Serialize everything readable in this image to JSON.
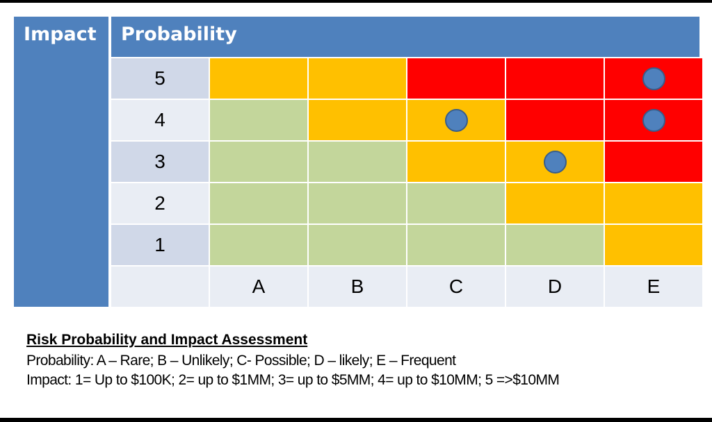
{
  "header": {
    "impact_label": "Impact",
    "probability_label": "Probability"
  },
  "colors": {
    "header_blue": "#4f81bd",
    "green": "#c3d69b",
    "amber": "#ffc000",
    "red": "#ff0000",
    "marker": "#4f81bd"
  },
  "matrix": {
    "row_labels": [
      "5",
      "4",
      "3",
      "2",
      "1"
    ],
    "column_labels": [
      "A",
      "B",
      "C",
      "D",
      "E"
    ],
    "cells": [
      [
        "amber",
        "amber",
        "red",
        "red",
        "red"
      ],
      [
        "green",
        "amber",
        "amber",
        "red",
        "red"
      ],
      [
        "green",
        "green",
        "amber",
        "amber",
        "red"
      ],
      [
        "green",
        "green",
        "green",
        "amber",
        "amber"
      ],
      [
        "green",
        "green",
        "green",
        "green",
        "amber"
      ]
    ],
    "markers": [
      {
        "impact": "5",
        "probability": "E"
      },
      {
        "impact": "4",
        "probability": "C"
      },
      {
        "impact": "4",
        "probability": "E"
      },
      {
        "impact": "3",
        "probability": "D"
      }
    ]
  },
  "legend": {
    "title": "Risk Probability and Impact Assessment",
    "probability_line": "Probability: A – Rare; B – Unlikely; C- Possible; D – likely; E – Frequent",
    "impact_line": "Impact: 1= Up to $100K; 2= up to $1MM; 3= up to $5MM; 4= up to $10MM; 5 =>$10MM"
  }
}
